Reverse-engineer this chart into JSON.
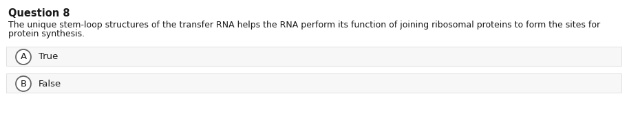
{
  "title": "Question 8",
  "question_text_line1": "The unique stem-loop structures of the transfer RNA helps the RNA perform its function of joining ribosomal proteins to form the sites for",
  "question_text_line2": "protein synthesis.",
  "options": [
    {
      "label": "A",
      "text": "True"
    },
    {
      "label": "B",
      "text": "False"
    }
  ],
  "bg_color": "#ffffff",
  "option_bg_color": "#f7f7f7",
  "option_border_color": "#dddddd",
  "title_fontsize": 10.5,
  "question_fontsize": 9.0,
  "option_fontsize": 9.5,
  "circle_color": "#ffffff",
  "circle_edge_color": "#666666",
  "text_color": "#1a1a1a",
  "fig_width": 9.14,
  "fig_height": 2.04,
  "dpi": 100
}
